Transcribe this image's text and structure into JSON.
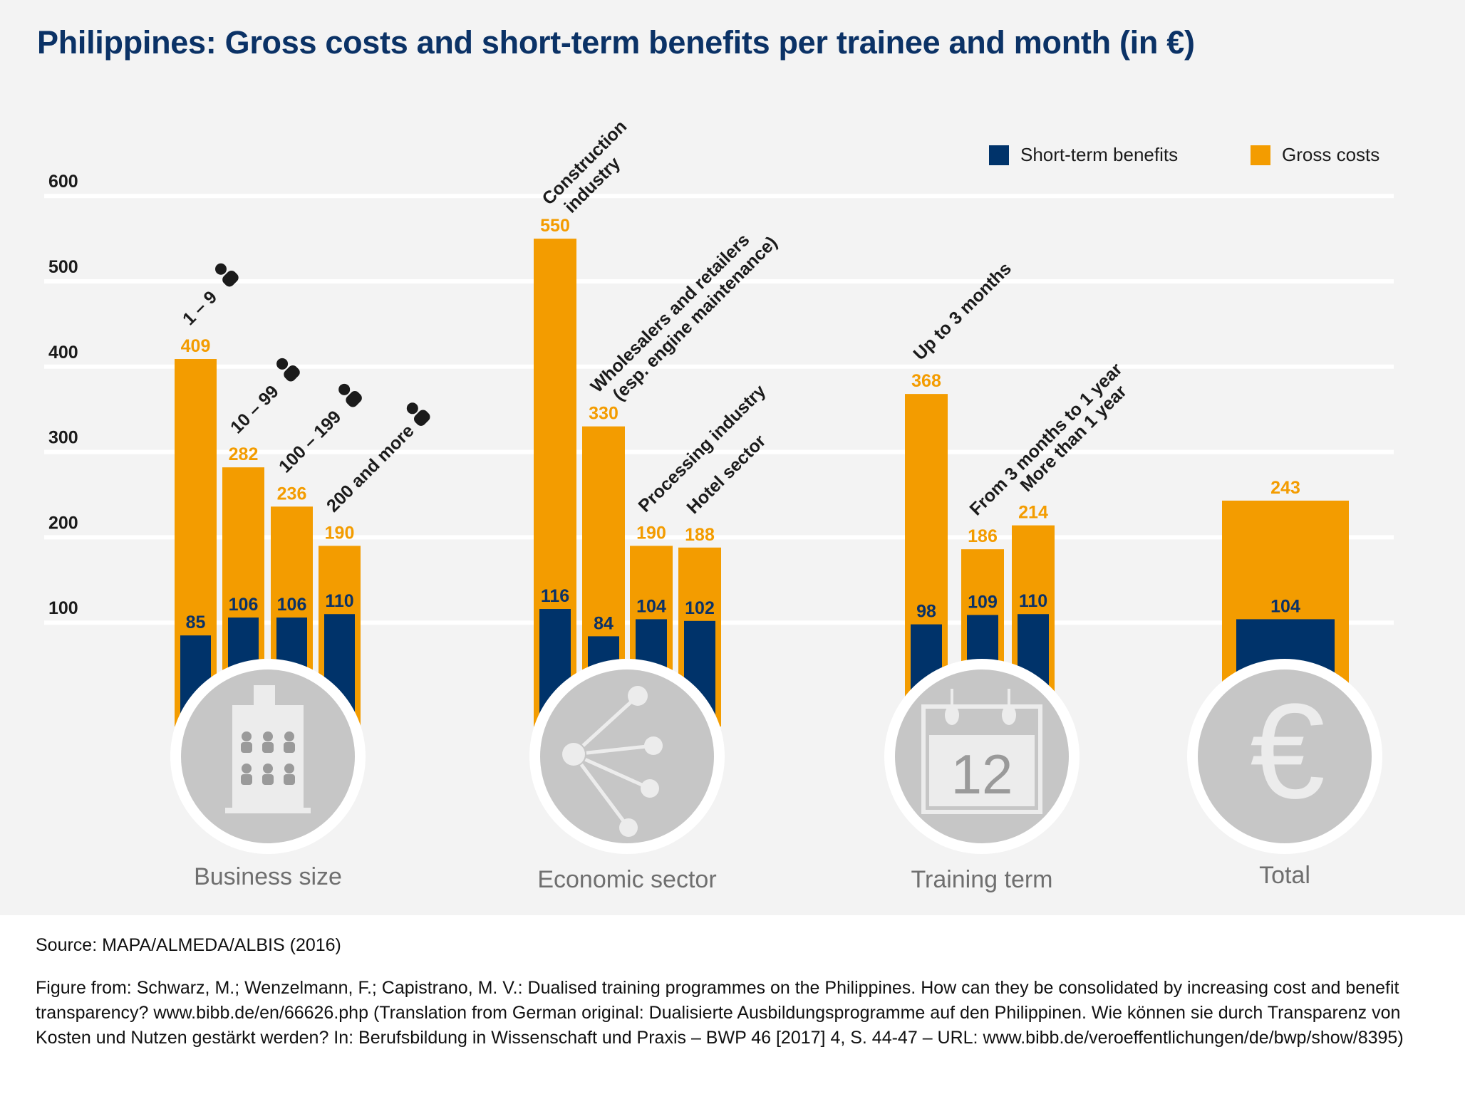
{
  "title": "Philippines: Gross costs and short-term benefits per trainee and month (in €)",
  "legend": {
    "benefits_label": "Short-term benefits",
    "costs_label": "Gross costs",
    "benefits_color": "#00336a",
    "costs_color": "#f39c00"
  },
  "source": "Source: MAPA/ALMEDA/ALBIS (2016)",
  "citation": "Figure from: Schwarz, M.; Wenzelmann, F.; Capistrano, M. V.: Dualised training programmes on the Philippines. How can they be consolidated by increasing cost and benefit transparency? www.bibb.de/en/66626.php (Translation from German original: Dualisierte Ausbildungsprogramme auf den Philippinen. Wie können sie durch Transparenz von Kosten und Nutzen gestärkt werden? In: Berufsbildung in Wissenschaft und Praxis – BWP 46 [2017] 4, S. 44-47 – URL: www.bibb.de/veroeffentlichungen/de/bwp/show/8395)",
  "chart_data": {
    "type": "bar",
    "title": "Philippines: Gross costs and short-term benefits per trainee and month (in €)",
    "xlabel": "",
    "ylabel": "",
    "ylim": [
      0,
      600
    ],
    "yticks": [
      100,
      200,
      300,
      400,
      500,
      600
    ],
    "grid": true,
    "legend_position": "top-right",
    "series_names": [
      "Short-term benefits",
      "Gross costs"
    ],
    "groups": [
      {
        "name": "Business size",
        "icon": "building-icon",
        "categories": [
          "1 – 9",
          "10 – 99",
          "100 – 199",
          "200 and more"
        ],
        "category_icon": "person-icon",
        "gross_costs": [
          409,
          282,
          236,
          190
        ],
        "short_term_benefits": [
          85,
          106,
          106,
          110
        ]
      },
      {
        "name": "Economic sector",
        "icon": "network-icon",
        "categories": [
          "Construction industry",
          "Wholesalers and retailers (esp. engine maintenance)",
          "Processing industry",
          "Hotel sector"
        ],
        "category_lines": [
          [
            "Construction",
            "industry"
          ],
          [
            "Wholesalers and retailers",
            "(esp. engine maintenance)"
          ],
          [
            "Processing industry"
          ],
          [
            "Hotel sector"
          ]
        ],
        "gross_costs": [
          550,
          330,
          190,
          188
        ],
        "short_term_benefits": [
          116,
          84,
          104,
          102
        ]
      },
      {
        "name": "Training term",
        "icon": "calendar-icon",
        "icon_text": "12",
        "categories": [
          "Up to 3 months",
          "From 3 months to 1 year",
          "More than 1 year"
        ],
        "gross_costs": [
          368,
          186,
          214
        ],
        "short_term_benefits": [
          98,
          109,
          110
        ]
      },
      {
        "name": "Total",
        "icon": "euro-icon",
        "icon_text": "€",
        "categories": [
          ""
        ],
        "gross_costs": [
          243
        ],
        "short_term_benefits": [
          104
        ]
      }
    ]
  }
}
